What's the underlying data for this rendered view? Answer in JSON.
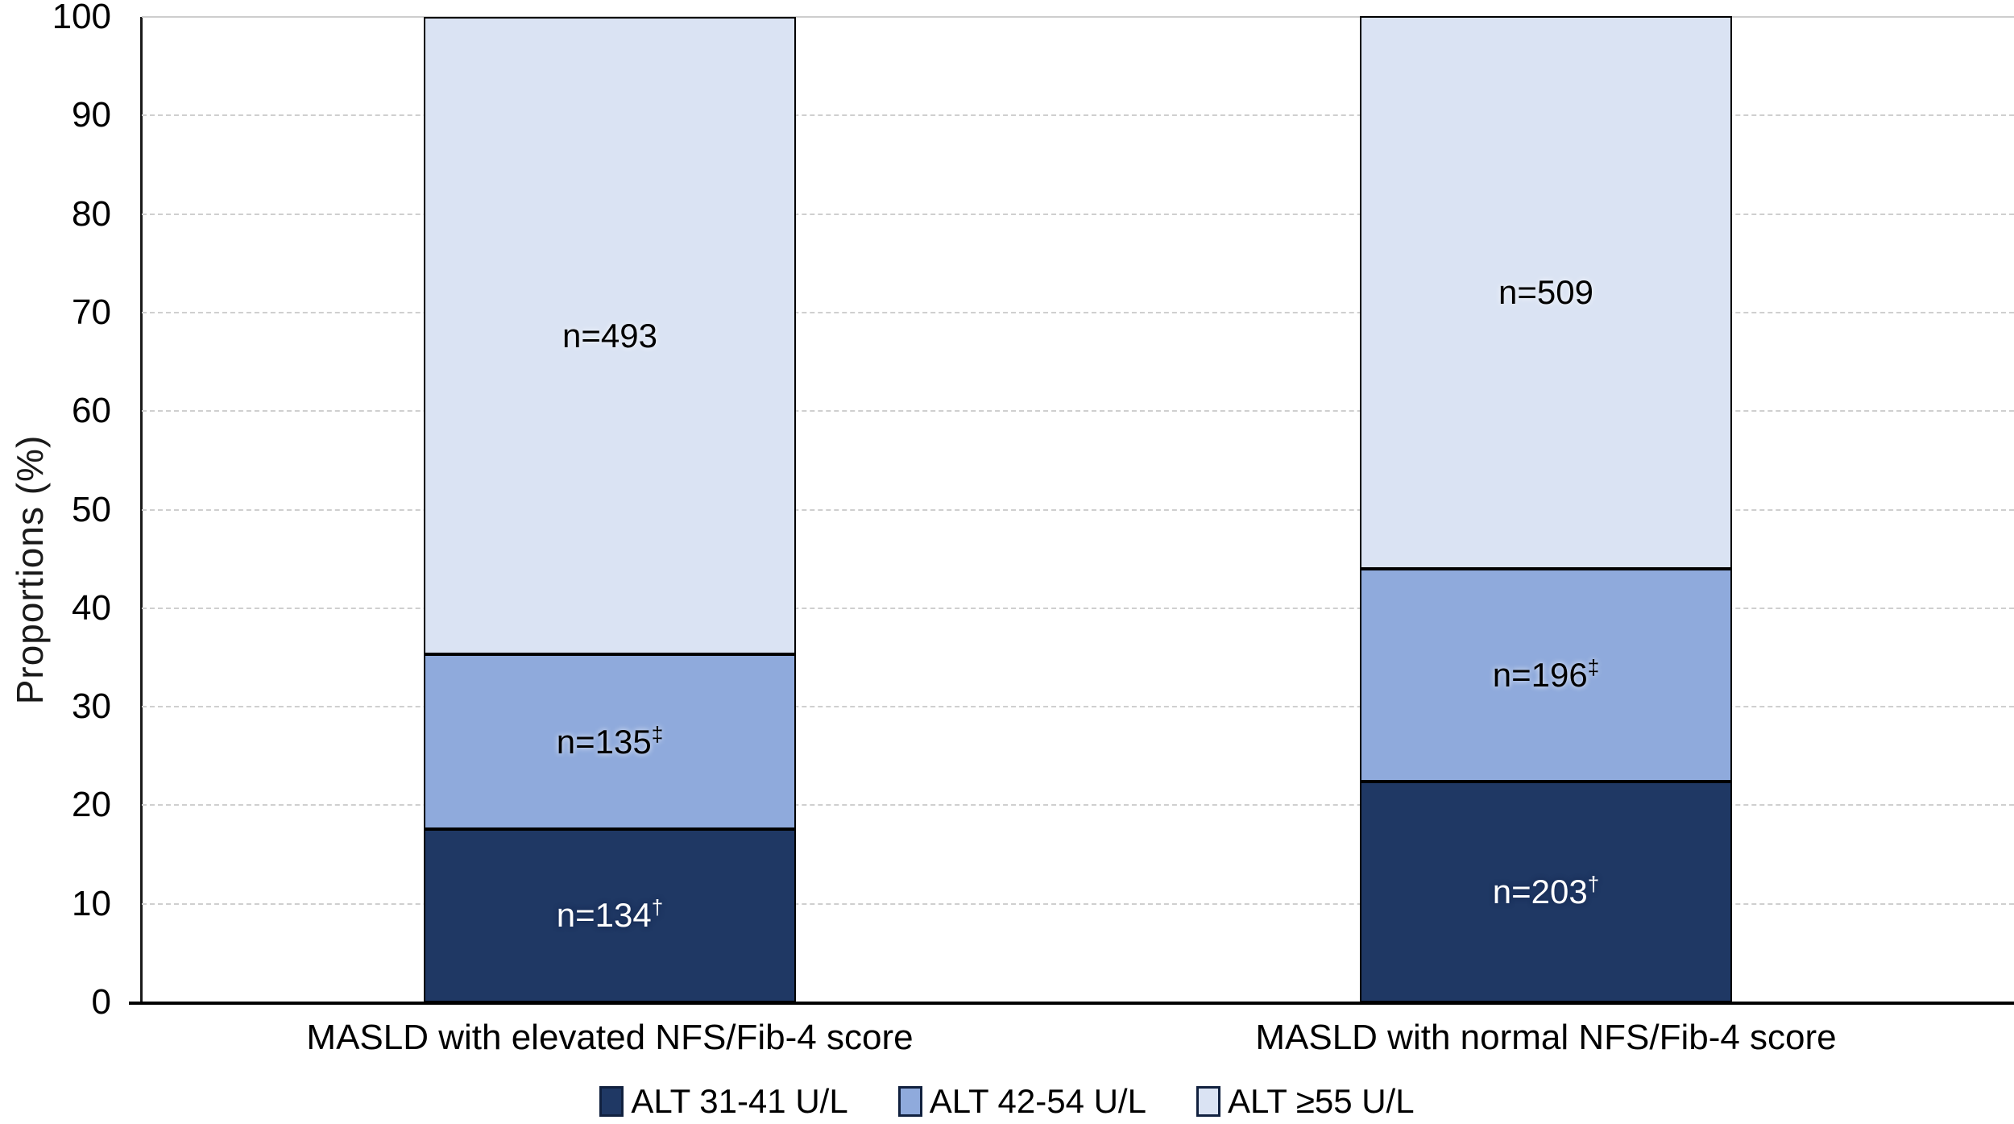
{
  "chart_data": {
    "type": "bar",
    "subtype": "stacked-percentage",
    "title": "",
    "xlabel": "",
    "ylabel": "Proportions (%)",
    "ylim": [
      0,
      100
    ],
    "ytick_step": 10,
    "yticks": [
      0,
      10,
      20,
      30,
      40,
      50,
      60,
      70,
      80,
      90,
      100
    ],
    "grid": "horizontal-dashed",
    "legend_position": "bottom",
    "label_prefix": "n=",
    "categories": [
      "MASLD with elevated NFS/Fib-4 score",
      "MASLD with normal NFS/Fib-4 score"
    ],
    "series": [
      {
        "name": "ALT 31-41 U/L",
        "color": "#1F3864",
        "label_color": "on-dark",
        "sup": "†",
        "counts": [
          134,
          203
        ],
        "values": [
          17.6,
          22.4
        ]
      },
      {
        "name": "ALT 42-54 U/L",
        "color": "#8FAADC",
        "label_color": "on-light",
        "sup": "‡",
        "counts": [
          135,
          196
        ],
        "values": [
          17.7,
          21.6
        ]
      },
      {
        "name": "ALT ≥55 U/L",
        "color": "#DAE3F3",
        "label_color": "on-light",
        "sup": "",
        "counts": [
          493,
          509
        ],
        "values": [
          64.7,
          56.1
        ]
      }
    ],
    "segment_boundaries_pct": {
      "bar1": [
        17.6,
        35.3
      ],
      "bar2": [
        22.4,
        44.0
      ]
    }
  },
  "colors": {
    "axis": "#1a1a1a",
    "gridline": "#cfcfcf",
    "background": "#ffffff"
  }
}
